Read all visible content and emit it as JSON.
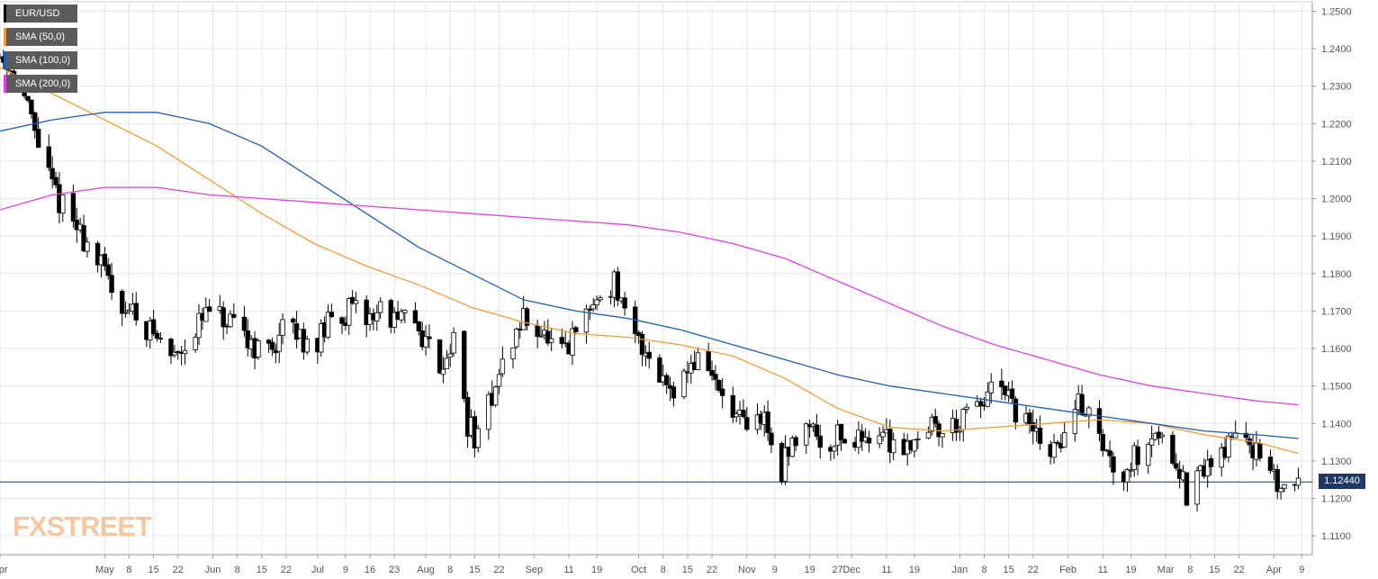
{
  "colors": {
    "bull": "#ffffff",
    "bear": "#000000",
    "grid": "#e6e6e6",
    "axis_text": "#555555",
    "current": "#1f3864"
  },
  "legend": [
    {
      "label": "EUR/USD",
      "color": "#000000",
      "icon": "square-swatch"
    },
    {
      "label": "SMA (50,0)",
      "color": "#f39c35",
      "icon": "square-swatch"
    },
    {
      "label": "SMA (100,0)",
      "color": "#1f5fb5",
      "icon": "square-swatch"
    },
    {
      "label": "SMA (200,0)",
      "color": "#e13fe6",
      "icon": "square-swatch"
    }
  ],
  "brand": {
    "text": "FXSTREET"
  },
  "current_price_label": "1.12440",
  "chart_data": {
    "type": "candlestick",
    "title": "",
    "xlabel": "",
    "ylabel": "",
    "ylim": [
      1.105,
      1.2525
    ],
    "grid": true,
    "legend_position": "top-left",
    "y_ticks": [
      "1.2500",
      "1.2400",
      "1.2300",
      "1.2200",
      "1.2100",
      "1.2000",
      "1.1900",
      "1.1800",
      "1.1700",
      "1.1600",
      "1.1500",
      "1.1400",
      "1.1300",
      "1.1200",
      "1.1100"
    ],
    "x_ticks": [
      {
        "label": "Apr",
        "day": 0
      },
      {
        "label": "May",
        "day": 30
      },
      {
        "label": "8",
        "day": 37
      },
      {
        "label": "15",
        "day": 44
      },
      {
        "label": "22",
        "day": 51
      },
      {
        "label": "Jun",
        "day": 61
      },
      {
        "label": "8",
        "day": 68
      },
      {
        "label": "15",
        "day": 75
      },
      {
        "label": "22",
        "day": 82
      },
      {
        "label": "Jul",
        "day": 91
      },
      {
        "label": "9",
        "day": 99
      },
      {
        "label": "16",
        "day": 106
      },
      {
        "label": "23",
        "day": 113
      },
      {
        "label": "Aug",
        "day": 122
      },
      {
        "label": "8",
        "day": 129
      },
      {
        "label": "15",
        "day": 136
      },
      {
        "label": "22",
        "day": 143
      },
      {
        "label": "Sep",
        "day": 153
      },
      {
        "label": "11",
        "day": 163
      },
      {
        "label": "19",
        "day": 171
      },
      {
        "label": "Oct",
        "day": 183
      },
      {
        "label": "8",
        "day": 190
      },
      {
        "label": "15",
        "day": 197
      },
      {
        "label": "22",
        "day": 204
      },
      {
        "label": "Nov",
        "day": 214
      },
      {
        "label": "9",
        "day": 222
      },
      {
        "label": "19",
        "day": 232
      },
      {
        "label": "27",
        "day": 240
      },
      {
        "label": "Dec",
        "day": 244
      },
      {
        "label": "11",
        "day": 254
      },
      {
        "label": "19",
        "day": 262
      },
      {
        "label": "Jan",
        "day": 275
      },
      {
        "label": "8",
        "day": 282
      },
      {
        "label": "15",
        "day": 289
      },
      {
        "label": "22",
        "day": 296
      },
      {
        "label": "Feb",
        "day": 306
      },
      {
        "label": "11",
        "day": 316
      },
      {
        "label": "19",
        "day": 324
      },
      {
        "label": "Mar",
        "day": 334
      },
      {
        "label": "8",
        "day": 341
      },
      {
        "label": "15",
        "day": 348
      },
      {
        "label": "22",
        "day": 355
      },
      {
        "label": "Apr",
        "day": 365
      },
      {
        "label": "9",
        "day": 373
      }
    ],
    "x_range_days": [
      0,
      376
    ],
    "current_price": 1.1244,
    "price_path": [
      [
        0,
        1.238
      ],
      [
        5,
        1.233
      ],
      [
        10,
        1.218
      ],
      [
        15,
        1.203
      ],
      [
        20,
        1.195
      ],
      [
        25,
        1.188
      ],
      [
        30,
        1.18
      ],
      [
        35,
        1.172
      ],
      [
        40,
        1.168
      ],
      [
        44,
        1.164
      ],
      [
        49,
        1.158
      ],
      [
        56,
        1.165
      ],
      [
        60,
        1.17
      ],
      [
        65,
        1.166
      ],
      [
        72,
        1.162
      ],
      [
        76,
        1.158
      ],
      [
        82,
        1.166
      ],
      [
        86,
        1.163
      ],
      [
        91,
        1.162
      ],
      [
        96,
        1.169
      ],
      [
        100,
        1.17
      ],
      [
        105,
        1.168
      ],
      [
        110,
        1.171
      ],
      [
        114,
        1.166
      ],
      [
        118,
        1.169
      ],
      [
        122,
        1.162
      ],
      [
        126,
        1.156
      ],
      [
        130,
        1.162
      ],
      [
        134,
        1.14
      ],
      [
        137,
        1.135
      ],
      [
        141,
        1.148
      ],
      [
        146,
        1.16
      ],
      [
        150,
        1.168
      ],
      [
        154,
        1.166
      ],
      [
        158,
        1.16
      ],
      [
        162,
        1.158
      ],
      [
        166,
        1.166
      ],
      [
        170,
        1.172
      ],
      [
        176,
        1.178
      ],
      [
        180,
        1.164
      ],
      [
        185,
        1.16
      ],
      [
        190,
        1.152
      ],
      [
        194,
        1.15
      ],
      [
        198,
        1.156
      ],
      [
        202,
        1.158
      ],
      [
        206,
        1.148
      ],
      [
        210,
        1.142
      ],
      [
        214,
        1.138
      ],
      [
        219,
        1.142
      ],
      [
        223,
        1.126
      ],
      [
        228,
        1.136
      ],
      [
        232,
        1.142
      ],
      [
        236,
        1.132
      ],
      [
        240,
        1.138
      ],
      [
        244,
        1.134
      ],
      [
        249,
        1.138
      ],
      [
        254,
        1.136
      ],
      [
        258,
        1.134
      ],
      [
        262,
        1.136
      ],
      [
        266,
        1.14
      ],
      [
        270,
        1.138
      ],
      [
        274,
        1.14
      ],
      [
        278,
        1.142
      ],
      [
        282,
        1.146
      ],
      [
        286,
        1.15
      ],
      [
        290,
        1.144
      ],
      [
        294,
        1.14
      ],
      [
        298,
        1.136
      ],
      [
        302,
        1.132
      ],
      [
        306,
        1.14
      ],
      [
        310,
        1.146
      ],
      [
        314,
        1.138
      ],
      [
        318,
        1.13
      ],
      [
        322,
        1.128
      ],
      [
        326,
        1.132
      ],
      [
        330,
        1.138
      ],
      [
        334,
        1.136
      ],
      [
        338,
        1.128
      ],
      [
        340,
        1.12
      ],
      [
        344,
        1.126
      ],
      [
        348,
        1.132
      ],
      [
        352,
        1.134
      ],
      [
        355,
        1.14
      ],
      [
        358,
        1.136
      ],
      [
        362,
        1.128
      ],
      [
        365,
        1.124
      ],
      [
        369,
        1.123
      ],
      [
        372,
        1.125
      ]
    ],
    "series": [
      {
        "name": "SMA (50,0)",
        "color": "#f39c35",
        "points": [
          [
            0,
            1.235
          ],
          [
            15,
            1.228
          ],
          [
            30,
            1.221
          ],
          [
            45,
            1.214
          ],
          [
            60,
            1.205
          ],
          [
            75,
            1.196
          ],
          [
            90,
            1.188
          ],
          [
            105,
            1.182
          ],
          [
            120,
            1.177
          ],
          [
            135,
            1.171
          ],
          [
            150,
            1.167
          ],
          [
            165,
            1.164
          ],
          [
            180,
            1.163
          ],
          [
            195,
            1.161
          ],
          [
            210,
            1.158
          ],
          [
            225,
            1.152
          ],
          [
            240,
            1.144
          ],
          [
            255,
            1.139
          ],
          [
            270,
            1.138
          ],
          [
            285,
            1.139
          ],
          [
            300,
            1.14
          ],
          [
            315,
            1.141
          ],
          [
            330,
            1.14
          ],
          [
            345,
            1.137
          ],
          [
            360,
            1.135
          ],
          [
            372,
            1.132
          ]
        ]
      },
      {
        "name": "SMA (100,0)",
        "color": "#1f5fb5",
        "points": [
          [
            0,
            1.218
          ],
          [
            15,
            1.221
          ],
          [
            30,
            1.223
          ],
          [
            45,
            1.223
          ],
          [
            60,
            1.22
          ],
          [
            75,
            1.214
          ],
          [
            90,
            1.205
          ],
          [
            105,
            1.196
          ],
          [
            120,
            1.187
          ],
          [
            135,
            1.18
          ],
          [
            150,
            1.173
          ],
          [
            165,
            1.17
          ],
          [
            180,
            1.168
          ],
          [
            195,
            1.165
          ],
          [
            210,
            1.161
          ],
          [
            225,
            1.157
          ],
          [
            240,
            1.153
          ],
          [
            255,
            1.15
          ],
          [
            270,
            1.148
          ],
          [
            285,
            1.146
          ],
          [
            300,
            1.144
          ],
          [
            315,
            1.142
          ],
          [
            330,
            1.14
          ],
          [
            345,
            1.138
          ],
          [
            360,
            1.137
          ],
          [
            372,
            1.136
          ]
        ]
      },
      {
        "name": "SMA (200,0)",
        "color": "#e13fe6",
        "points": [
          [
            0,
            1.197
          ],
          [
            15,
            1.201
          ],
          [
            30,
            1.203
          ],
          [
            45,
            1.203
          ],
          [
            60,
            1.201
          ],
          [
            75,
            1.2
          ],
          [
            90,
            1.199
          ],
          [
            105,
            1.198
          ],
          [
            120,
            1.197
          ],
          [
            135,
            1.196
          ],
          [
            150,
            1.195
          ],
          [
            165,
            1.194
          ],
          [
            180,
            1.193
          ],
          [
            195,
            1.191
          ],
          [
            210,
            1.188
          ],
          [
            225,
            1.184
          ],
          [
            240,
            1.178
          ],
          [
            255,
            1.172
          ],
          [
            270,
            1.166
          ],
          [
            285,
            1.161
          ],
          [
            300,
            1.157
          ],
          [
            315,
            1.153
          ],
          [
            330,
            1.15
          ],
          [
            345,
            1.148
          ],
          [
            360,
            1.146
          ],
          [
            372,
            1.145
          ]
        ]
      }
    ]
  }
}
